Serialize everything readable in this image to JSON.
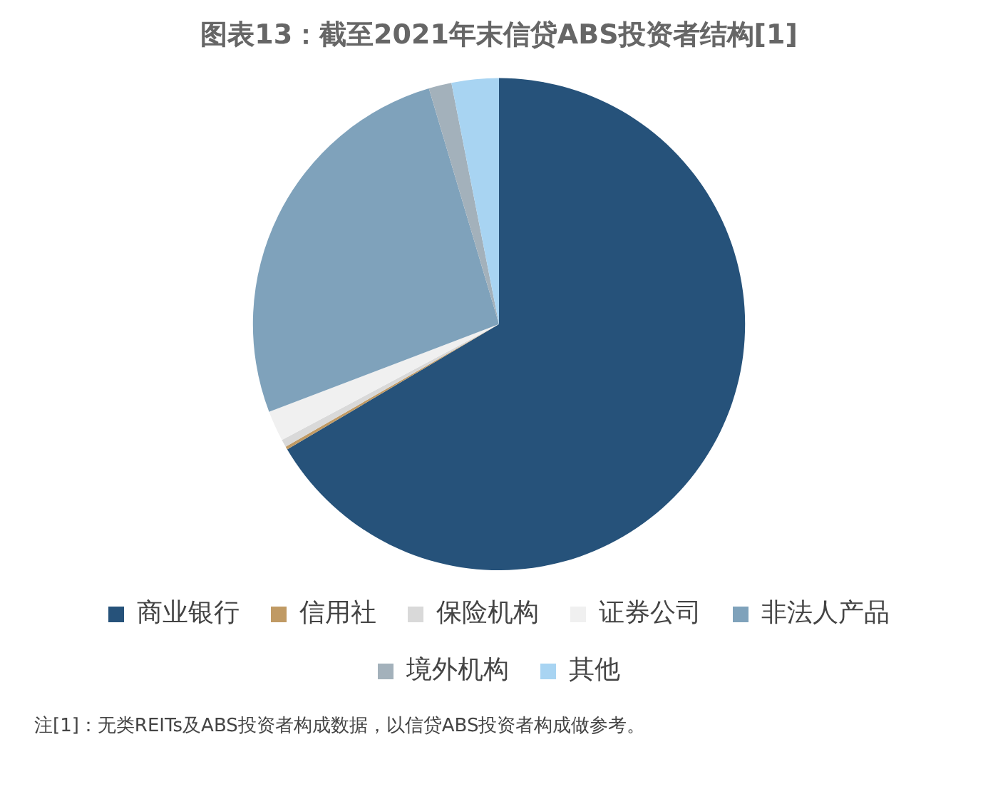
{
  "chart_data": {
    "type": "pie",
    "title": "图表13：截至2021年末信贷ABS投资者结构[1]",
    "categories": [
      "商业银行",
      "信用社",
      "保险机构",
      "证券公司",
      "非法人产品",
      "境外机构",
      "其他"
    ],
    "values": [
      66.5,
      0.2,
      0.5,
      2.0,
      26.2,
      1.5,
      3.1
    ],
    "colors": [
      "#26527a",
      "#c09a64",
      "#d9d9d9",
      "#f0f0f0",
      "#7fa2bb",
      "#a3b1bb",
      "#a8d4f2"
    ],
    "legend": "bottom",
    "annotations": [
      "注[1]：无类REITs及ABS投资者构成数据，以信贷ABS投资者构成做参考。"
    ]
  }
}
